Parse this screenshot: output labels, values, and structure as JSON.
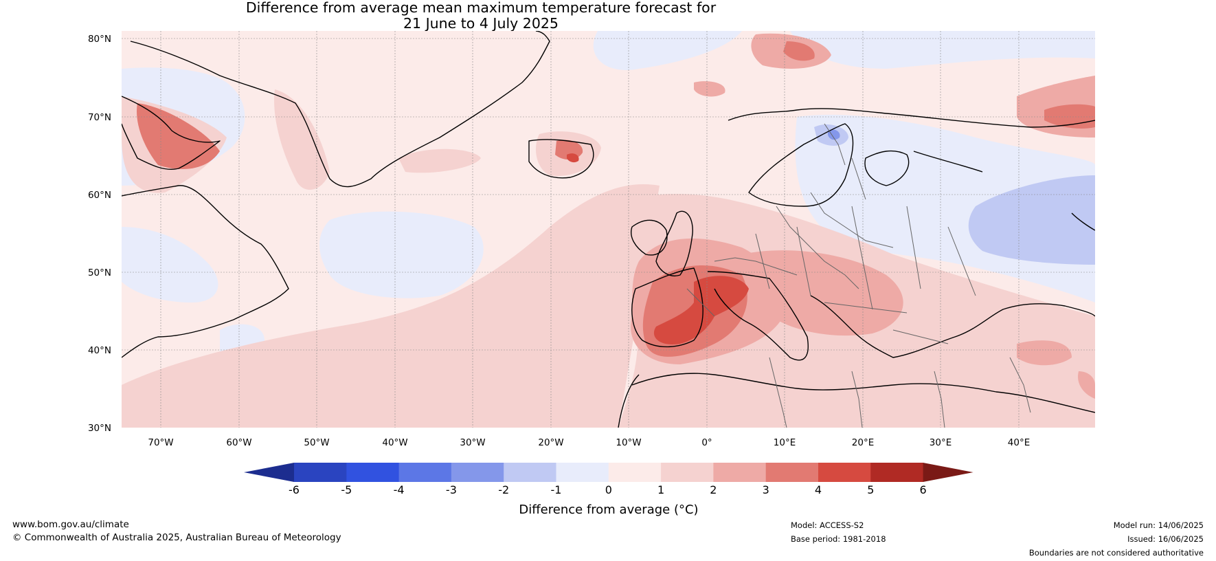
{
  "title": {
    "line1": "Difference from average mean maximum temperature forecast for",
    "line2": "21 June to 4 July 2025"
  },
  "axes": {
    "lat_labels": [
      "80°N",
      "70°N",
      "60°N",
      "50°N",
      "40°N",
      "30°N"
    ],
    "lon_labels": [
      "70°W",
      "60°W",
      "50°W",
      "40°W",
      "30°W",
      "20°W",
      "10°W",
      "0°",
      "10°E",
      "20°E",
      "30°E",
      "40°E"
    ]
  },
  "colorbar": {
    "label": "Difference from average (°C)",
    "ticks": [
      "-6",
      "-5",
      "-4",
      "-3",
      "-2",
      "-1",
      "0",
      "1",
      "2",
      "3",
      "4",
      "5",
      "6"
    ],
    "colors": [
      "#1c2d8f",
      "#2a44c0",
      "#3152e0",
      "#5c77e6",
      "#8497ea",
      "#c0c9f3",
      "#e8ecfb",
      "#fcebe9",
      "#f5d2d0",
      "#eeaaa6",
      "#e27a72",
      "#d64a40",
      "#b02a24",
      "#7a1a16"
    ]
  },
  "footer": {
    "website": "www.bom.gov.au/climate",
    "copyright": "© Commonwealth of Australia 2025, Australian Bureau of Meteorology",
    "model": "Model: ACCESS-S2",
    "base_period": "Base period: 1981-2018",
    "model_run": "Model run: 14/06/2025",
    "issued": "Issued: 16/06/2025",
    "disclaimer": "Boundaries are not considered authoritative"
  }
}
